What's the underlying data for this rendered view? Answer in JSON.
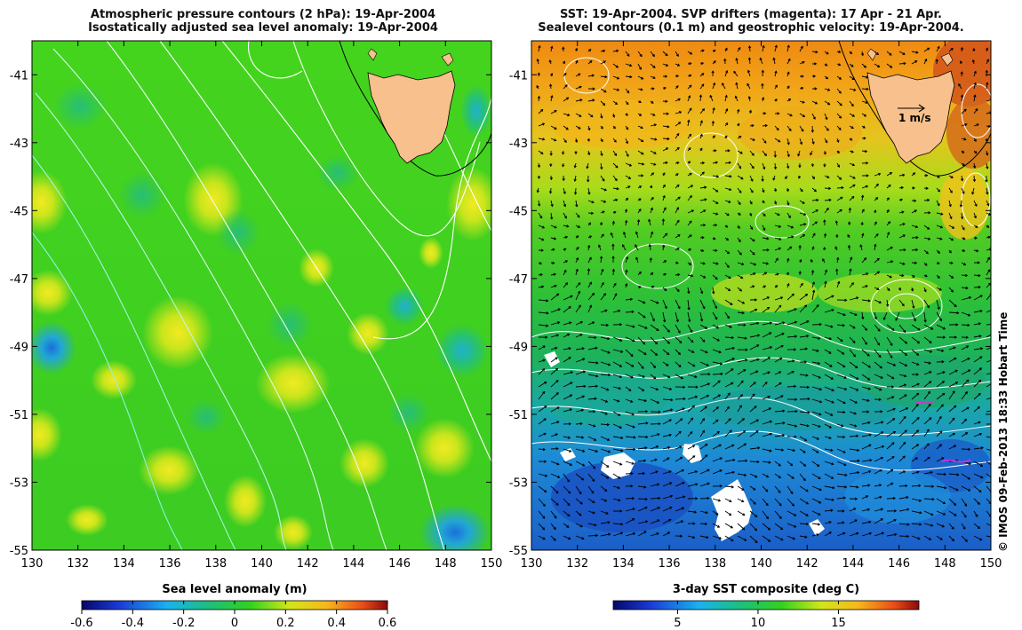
{
  "left_panel": {
    "title_line1": "Atmospheric pressure contours (2 hPa): 19-Apr-2004",
    "title_line2": "Isostatically adjusted sea level anomaly: 19-Apr-2004",
    "y_ticks": [
      "-41",
      "-43",
      "-45",
      "-47",
      "-49",
      "-51",
      "-53",
      "-55"
    ],
    "x_ticks": [
      "130",
      "132",
      "134",
      "136",
      "138",
      "140",
      "142",
      "144",
      "146",
      "148",
      "150"
    ],
    "colorbar_label": "Sea level anomaly (m)",
    "colorbar_ticks": [
      "-0.6",
      "-0.4",
      "-0.2",
      "0",
      "0.2",
      "0.4",
      "0.6"
    ],
    "colorbar_range": [
      -0.6,
      0.6
    ]
  },
  "right_panel": {
    "title_line1": "SST: 19-Apr-2004. SVP drifters (magenta): 17 Apr - 21 Apr.",
    "title_line2": "Sealevel contours (0.1 m) and geostrophic velocity: 19-Apr-2004.",
    "y_ticks": [
      "-41",
      "-43",
      "-45",
      "-47",
      "-49",
      "-51",
      "-53",
      "-55"
    ],
    "x_ticks": [
      "130",
      "132",
      "134",
      "136",
      "138",
      "140",
      "142",
      "144",
      "146",
      "148",
      "150"
    ],
    "velocity_scale_label": "1 m/s",
    "colorbar_label": "3-day SST composite (deg C)",
    "colorbar_ticks": [
      "5",
      "10",
      "15"
    ],
    "colorbar_tick_values": [
      5,
      10,
      15
    ],
    "colorbar_range": [
      1,
      20
    ]
  },
  "map": {
    "lon_range": [
      130,
      150
    ],
    "lat_range": [
      -55,
      -40
    ]
  },
  "credit": "© IMOS 09-Feb-2013 18:33 Hobart Time",
  "colors": {
    "land": "#f7c08c",
    "sla_background": "#3fd11f",
    "sst_warm": "#f09010",
    "sst_mid": "#bfe21e",
    "sst_cool": "#1cb24a",
    "sst_cold": "#1f7ad8"
  }
}
